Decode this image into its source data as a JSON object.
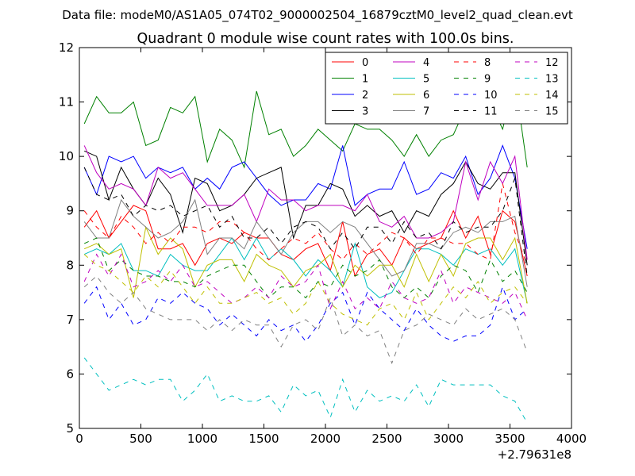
{
  "chart_data": {
    "type": "line",
    "suptitle": "Data file: modeM0/AS1A05_074T02_9000002504_16879cztM0_level2_quad_clean.evt",
    "title": "Quadrant 0 module wise count rates with 100.0s bins.",
    "xlabel": "",
    "ylabel": "",
    "x_offset_label": "+2.79631e8",
    "xlim": [
      0,
      4000
    ],
    "ylim": [
      5,
      12
    ],
    "x_ticks": [
      0,
      500,
      1000,
      1500,
      2000,
      2500,
      3000,
      3500,
      4000
    ],
    "y_ticks": [
      5,
      6,
      7,
      8,
      9,
      10,
      11,
      12
    ],
    "grid": false,
    "legend_placement": "top-right",
    "legend_columns": 4,
    "x": [
      40,
      140,
      240,
      340,
      440,
      540,
      640,
      740,
      840,
      940,
      1040,
      1140,
      1240,
      1340,
      1440,
      1540,
      1640,
      1740,
      1840,
      1940,
      2040,
      2140,
      2240,
      2340,
      2440,
      2540,
      2640,
      2740,
      2840,
      2940,
      3040,
      3140,
      3240,
      3340,
      3440,
      3540,
      3640
    ],
    "series": [
      {
        "name": "0",
        "color": "#ff0000",
        "dash": "solid",
        "values": [
          8.7,
          9.0,
          8.5,
          8.8,
          9.1,
          9.0,
          8.3,
          8.3,
          8.4,
          8.0,
          8.4,
          8.5,
          8.4,
          8.6,
          8.5,
          8.5,
          8.2,
          8.1,
          8.3,
          8.4,
          7.9,
          8.8,
          7.8,
          8.2,
          8.3,
          8.0,
          8.5,
          8.3,
          8.4,
          8.5,
          9.0,
          8.5,
          8.9,
          8.2,
          9.0,
          8.8,
          7.8
        ]
      },
      {
        "name": "1",
        "color": "#008000",
        "dash": "solid",
        "values": [
          10.6,
          11.1,
          10.8,
          10.8,
          11.0,
          10.2,
          10.3,
          10.9,
          10.8,
          11.1,
          9.9,
          10.5,
          10.3,
          9.8,
          11.2,
          10.4,
          10.5,
          10.0,
          10.2,
          10.5,
          10.3,
          10.1,
          10.6,
          10.5,
          10.5,
          10.3,
          10.0,
          10.4,
          10.0,
          10.3,
          10.4,
          10.9,
          10.9,
          11.0,
          10.5,
          11.4,
          9.8
        ]
      },
      {
        "name": "2",
        "color": "#0000ff",
        "dash": "solid",
        "values": [
          9.8,
          9.3,
          10.0,
          9.9,
          10.0,
          9.6,
          9.8,
          9.7,
          9.8,
          9.4,
          9.6,
          9.4,
          9.8,
          9.9,
          9.6,
          9.3,
          9.1,
          9.2,
          9.2,
          9.5,
          9.4,
          10.2,
          9.1,
          9.3,
          9.4,
          9.4,
          9.9,
          9.3,
          9.4,
          9.7,
          9.6,
          10.0,
          9.3,
          9.6,
          10.2,
          9.6,
          8.3
        ]
      },
      {
        "name": "3",
        "color": "#000000",
        "dash": "solid",
        "values": [
          10.1,
          10.0,
          9.2,
          9.8,
          9.4,
          9.1,
          9.6,
          9.3,
          8.6,
          9.6,
          9.5,
          9.0,
          9.1,
          9.3,
          9.6,
          9.7,
          9.8,
          8.5,
          9.1,
          9.1,
          9.5,
          9.4,
          8.9,
          9.1,
          8.9,
          9.0,
          8.6,
          9.0,
          8.9,
          9.3,
          9.5,
          9.9,
          9.5,
          9.4,
          9.7,
          9.7,
          8.0
        ]
      },
      {
        "name": "4",
        "color": "#bf00bf",
        "dash": "solid",
        "values": [
          10.2,
          9.7,
          9.4,
          9.5,
          9.4,
          9.1,
          9.8,
          9.6,
          9.7,
          9.4,
          9.1,
          9.1,
          9.1,
          9.3,
          8.8,
          9.4,
          9.2,
          9.2,
          9.0,
          9.1,
          9.1,
          9.1,
          9.0,
          9.3,
          8.8,
          8.7,
          8.9,
          8.5,
          8.5,
          8.6,
          8.8,
          9.9,
          9.2,
          9.9,
          9.5,
          10.0,
          8.1
        ]
      },
      {
        "name": "5",
        "color": "#00bfbf",
        "dash": "solid",
        "values": [
          8.2,
          8.3,
          8.2,
          8.4,
          7.9,
          7.9,
          7.8,
          8.2,
          8.0,
          7.9,
          7.9,
          8.2,
          8.5,
          8.1,
          8.5,
          8.1,
          8.3,
          8.1,
          7.8,
          8.1,
          7.9,
          7.6,
          8.4,
          7.6,
          7.4,
          7.5,
          7.9,
          8.3,
          8.3,
          8.2,
          8.0,
          8.3,
          8.2,
          8.3,
          8.0,
          8.3,
          7.3
        ]
      },
      {
        "name": "6",
        "color": "#bfbf00",
        "dash": "solid",
        "values": [
          8.3,
          8.4,
          8.2,
          8.3,
          7.4,
          8.7,
          8.2,
          8.5,
          8.3,
          7.6,
          8.0,
          8.1,
          8.1,
          7.7,
          8.2,
          8.0,
          7.9,
          7.6,
          7.9,
          8.0,
          8.2,
          7.6,
          8.0,
          7.8,
          8.0,
          8.0,
          7.6,
          8.2,
          7.7,
          8.2,
          7.8,
          8.4,
          8.5,
          8.5,
          8.1,
          8.5,
          7.3
        ]
      },
      {
        "name": "7",
        "color": "#808080",
        "dash": "solid",
        "values": [
          8.8,
          8.5,
          8.5,
          9.2,
          8.9,
          8.7,
          8.5,
          8.6,
          8.8,
          9.2,
          8.2,
          8.5,
          8.5,
          8.3,
          8.8,
          8.5,
          8.2,
          8.6,
          8.8,
          8.8,
          8.6,
          8.8,
          8.7,
          8.4,
          8.1,
          7.8,
          7.9,
          8.4,
          8.4,
          8.3,
          8.6,
          8.7,
          8.6,
          8.8,
          8.8,
          8.9,
          7.6
        ]
      },
      {
        "name": "8",
        "color": "#ff0000",
        "dash": "dashed",
        "values": [
          9.0,
          8.7,
          8.5,
          8.9,
          8.7,
          8.4,
          8.6,
          8.4,
          8.7,
          8.7,
          8.6,
          8.8,
          8.8,
          8.6,
          8.3,
          8.1,
          8.3,
          8.5,
          8.4,
          8.6,
          8.3,
          8.1,
          8.4,
          8.2,
          8.4,
          8.6,
          8.5,
          8.2,
          8.5,
          8.5,
          8.4,
          8.4,
          8.2,
          8.1,
          9.5,
          8.6,
          8.0
        ]
      },
      {
        "name": "9",
        "color": "#008000",
        "dash": "dashed",
        "values": [
          8.4,
          8.5,
          7.9,
          8.1,
          7.9,
          7.8,
          7.8,
          7.7,
          7.7,
          7.6,
          7.8,
          7.9,
          8.0,
          8.0,
          7.7,
          7.4,
          7.6,
          7.6,
          7.4,
          7.7,
          7.6,
          8.0,
          7.8,
          7.9,
          8.1,
          7.6,
          7.4,
          7.6,
          7.4,
          7.8,
          8.0,
          7.9,
          7.5,
          8.1,
          7.7,
          7.9,
          7.5
        ]
      },
      {
        "name": "10",
        "color": "#0000ff",
        "dash": "dashed",
        "values": [
          7.3,
          7.6,
          7.0,
          7.3,
          6.9,
          7.0,
          7.4,
          7.3,
          7.5,
          7.3,
          7.2,
          6.9,
          7.1,
          6.9,
          6.7,
          7.0,
          6.8,
          6.9,
          6.6,
          6.9,
          7.3,
          7.5,
          6.9,
          7.5,
          7.2,
          7.0,
          6.8,
          7.2,
          6.9,
          6.7,
          6.6,
          6.7,
          6.7,
          6.9,
          7.6,
          7.0,
          7.2
        ]
      },
      {
        "name": "11",
        "color": "#000000",
        "dash": "dashed",
        "values": [
          9.8,
          9.3,
          9.2,
          9.3,
          8.9,
          9.1,
          9.0,
          9.1,
          8.9,
          9.0,
          9.1,
          8.7,
          8.9,
          8.5,
          8.5,
          8.7,
          8.4,
          8.7,
          8.8,
          8.7,
          8.3,
          8.6,
          8.3,
          8.7,
          8.7,
          8.4,
          8.8,
          8.5,
          8.6,
          8.3,
          8.8,
          8.6,
          8.7,
          8.7,
          9.0,
          9.6,
          7.8
        ]
      },
      {
        "name": "12",
        "color": "#bf00bf",
        "dash": "dashed",
        "values": [
          7.7,
          8.2,
          7.8,
          8.2,
          7.6,
          7.7,
          7.9,
          7.7,
          8.0,
          7.6,
          7.7,
          7.5,
          7.3,
          7.4,
          7.6,
          7.4,
          7.8,
          7.6,
          7.7,
          8.0,
          7.2,
          7.7,
          7.2,
          7.4,
          7.2,
          7.7,
          7.4,
          7.3,
          7.4,
          7.9,
          7.3,
          7.6,
          7.5,
          7.4,
          7.3,
          7.5,
          7.0
        ]
      },
      {
        "name": "13",
        "color": "#00bfbf",
        "dash": "dashed",
        "values": [
          6.3,
          6.0,
          5.7,
          5.8,
          5.9,
          5.8,
          5.9,
          5.9,
          5.5,
          5.7,
          6.0,
          5.5,
          5.6,
          5.5,
          5.5,
          5.6,
          5.3,
          5.8,
          5.6,
          5.7,
          5.2,
          5.9,
          5.3,
          5.7,
          5.5,
          5.6,
          5.5,
          5.8,
          5.4,
          5.9,
          5.8,
          5.8,
          5.8,
          5.8,
          5.6,
          5.5,
          5.1
        ]
      },
      {
        "name": "14",
        "color": "#bfbf00",
        "dash": "dashed",
        "values": [
          8.2,
          8.0,
          7.9,
          7.7,
          7.5,
          7.8,
          7.6,
          7.9,
          7.6,
          7.3,
          7.6,
          7.3,
          7.3,
          7.4,
          7.5,
          7.3,
          7.4,
          7.1,
          7.3,
          7.7,
          7.3,
          7.1,
          7.0,
          6.9,
          7.2,
          7.3,
          7.0,
          7.5,
          7.0,
          7.3,
          7.6,
          7.4,
          7.7,
          7.3,
          7.5,
          7.6,
          7.3
        ]
      },
      {
        "name": "15",
        "color": "#808080",
        "dash": "dashed",
        "values": [
          7.6,
          7.8,
          7.5,
          7.3,
          7.5,
          7.2,
          7.1,
          7.0,
          7.0,
          7.0,
          6.8,
          7.0,
          6.8,
          7.0,
          6.9,
          6.9,
          6.5,
          6.9,
          7.0,
          6.8,
          7.4,
          6.7,
          6.9,
          6.7,
          6.8,
          6.2,
          6.8,
          6.9,
          7.1,
          7.0,
          6.9,
          7.2,
          7.0,
          7.1,
          7.2,
          7.0,
          6.4
        ]
      }
    ]
  }
}
